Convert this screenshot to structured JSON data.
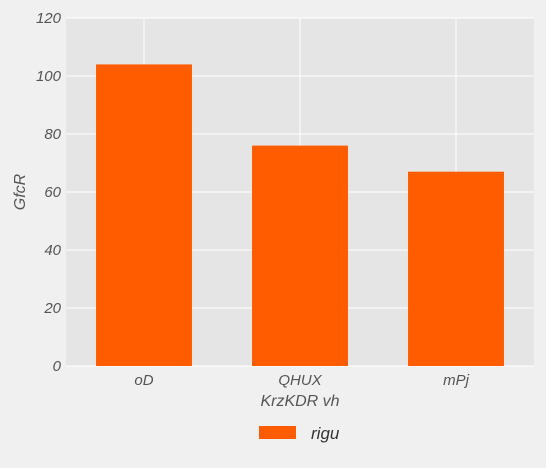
{
  "chart_data": {
    "type": "bar",
    "title": "",
    "xlabel": "KrzKDR vh",
    "ylabel": "GfcR",
    "categories": [
      "oD",
      "QHUX",
      "mPj"
    ],
    "series": [
      {
        "name": "rigu",
        "values": [
          104,
          76,
          67
        ],
        "color": "#ff5c00"
      }
    ],
    "ylim": [
      0,
      120
    ],
    "yticks": [
      0,
      20,
      40,
      60,
      80,
      100,
      120
    ],
    "grid": true,
    "legend_position": "bottom-center",
    "colors": {
      "background": "#f0f0f0",
      "plot_area": "#e5e5e5",
      "grid": "#ffffff"
    }
  }
}
